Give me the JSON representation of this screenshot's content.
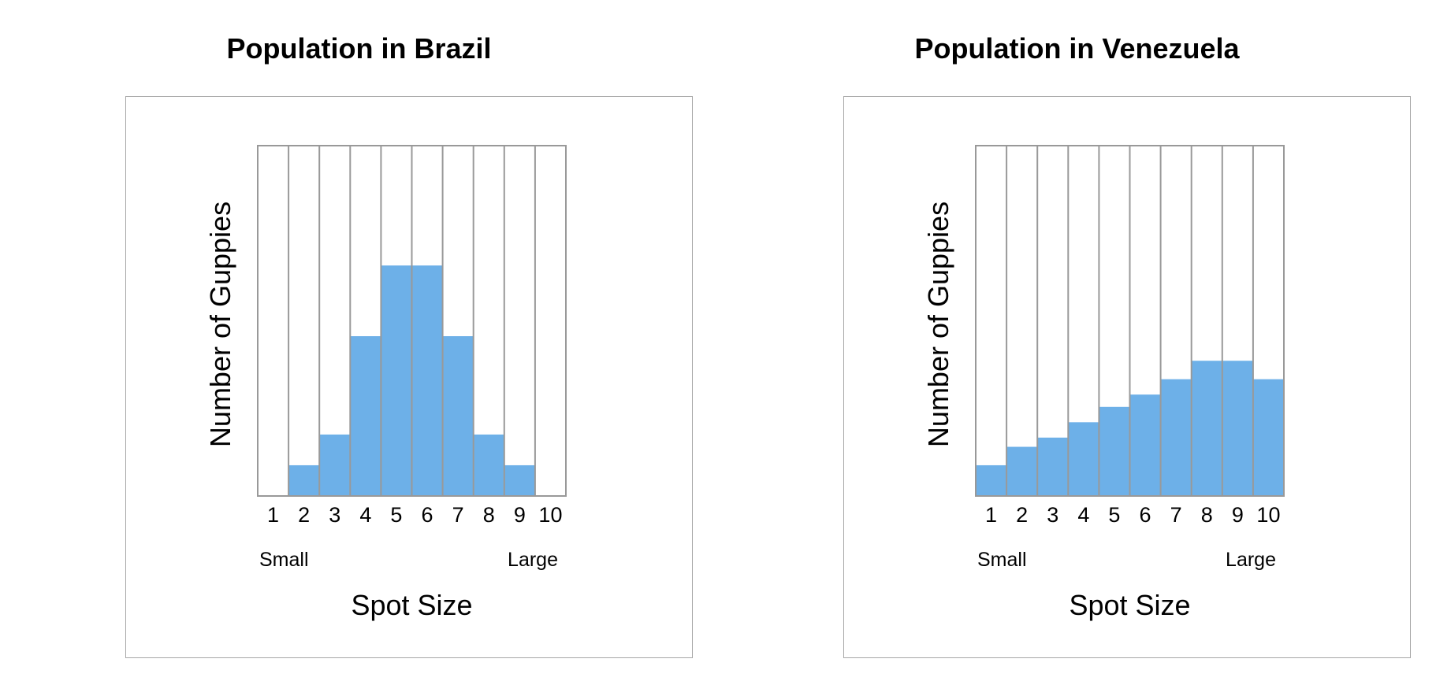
{
  "chart_data": [
    {
      "type": "bar",
      "title": "Population in Brazil",
      "categories": [
        "1",
        "2",
        "3",
        "4",
        "5",
        "6",
        "7",
        "8",
        "9",
        "10"
      ],
      "values": [
        0,
        1,
        2,
        5.2,
        7.5,
        7.5,
        5.2,
        2,
        1,
        0
      ],
      "ylim": [
        0,
        11.4
      ],
      "xlabel": "Spot Size",
      "ylabel": "Number of Guppies",
      "x_end_labels": {
        "low": "Small",
        "high": "Large"
      },
      "colors": {
        "bar": "#6db0e8",
        "grid": "#999999"
      }
    },
    {
      "type": "bar",
      "title": "Population in Venezuela",
      "categories": [
        "1",
        "2",
        "3",
        "4",
        "5",
        "6",
        "7",
        "8",
        "9",
        "10"
      ],
      "values": [
        1,
        1.6,
        1.9,
        2.4,
        2.9,
        3.3,
        3.8,
        4.4,
        4.4,
        3.8
      ],
      "ylim": [
        0,
        11.4
      ],
      "xlabel": "Spot Size",
      "ylabel": "Number of Guppies",
      "x_end_labels": {
        "low": "Small",
        "high": "Large"
      },
      "colors": {
        "bar": "#6db0e8",
        "grid": "#999999"
      }
    }
  ]
}
